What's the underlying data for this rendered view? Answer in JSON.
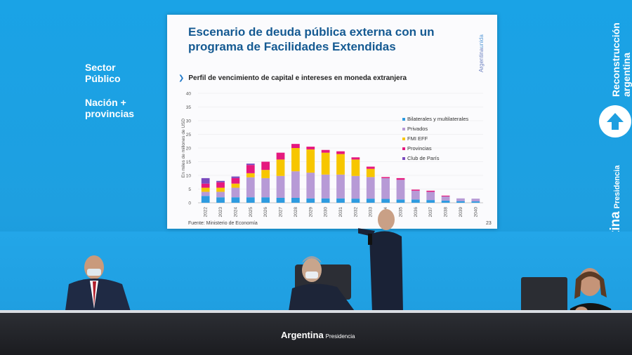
{
  "side": {
    "sector_line1": "Sector",
    "sector_line2": "Público",
    "nacion_line1": "Nación +",
    "nacion_line2": "provincias",
    "reconstruccion_line1": "Reconstrucción",
    "reconstruccion_line2": "argentina",
    "argentina": "Argentina",
    "presidencia": "Presidencia"
  },
  "slide": {
    "title": "Escenario de deuda pública externa con un programa de Facilidades Extendidas",
    "brand_prefix": "Argentina",
    "brand_suffix": "unida",
    "subtitle": "Perfil de vencimiento de capital e intereses en moneda extranjera",
    "source": "Fuente: Ministerio de Economía",
    "page": "23"
  },
  "table": {
    "brand": "Argentina",
    "brand_sub": "Presidencia"
  },
  "colors": {
    "background": "#1e9fe0",
    "title": "#155a92",
    "bilaterales": "#2e9be0",
    "privados": "#b79ad6",
    "fmi": "#f7c600",
    "provincias": "#e5197f",
    "club_paris": "#7a4bbf"
  },
  "chart_data": {
    "type": "bar",
    "stacked": true,
    "ylabel": "En miles de millones de USD",
    "ylim": [
      0,
      40
    ],
    "yticks": [
      0,
      5,
      10,
      15,
      20,
      25,
      30,
      35,
      40
    ],
    "categories": [
      "2022",
      "2023",
      "2024",
      "2025",
      "2026",
      "2027",
      "2028",
      "2029",
      "2030",
      "2031",
      "2032",
      "2033",
      "2034",
      "2035",
      "2036",
      "2037",
      "2038",
      "2039",
      "2040"
    ],
    "legend_position": "right",
    "series": [
      {
        "name": "Bilaterales y multilaterales",
        "values": [
          2.5,
          2.0,
          2.0,
          2.0,
          2.0,
          1.8,
          1.8,
          1.6,
          1.6,
          1.6,
          1.5,
          1.5,
          1.4,
          1.2,
          1.2,
          1.0,
          0.8,
          0.6,
          0.5
        ]
      },
      {
        "name": "Privados",
        "values": [
          1.5,
          2.0,
          3.5,
          7.3,
          7.0,
          8.0,
          9.7,
          9.4,
          8.7,
          8.7,
          8.3,
          7.9,
          7.6,
          7.2,
          3.2,
          3.0,
          1.5,
          1.0,
          1.0
        ]
      },
      {
        "name": "FMI EFF",
        "values": [
          1.5,
          1.5,
          1.5,
          1.5,
          3.0,
          6.0,
          8.5,
          8.5,
          8.0,
          7.5,
          6.0,
          3.0,
          0,
          0,
          0,
          0,
          0,
          0,
          0
        ]
      },
      {
        "name": "Provincias",
        "values": [
          1.5,
          2.0,
          2.0,
          3.0,
          3.0,
          2.5,
          1.5,
          1.0,
          1.0,
          1.0,
          0.8,
          0.8,
          0.4,
          0.6,
          0.4,
          0.4,
          0.3,
          0,
          0
        ]
      },
      {
        "name": "Club de París",
        "values": [
          2.0,
          0.5,
          0.6,
          0.5,
          0,
          0,
          0,
          0,
          0,
          0,
          0,
          0,
          0,
          0,
          0,
          0,
          0,
          0,
          0
        ]
      }
    ]
  }
}
